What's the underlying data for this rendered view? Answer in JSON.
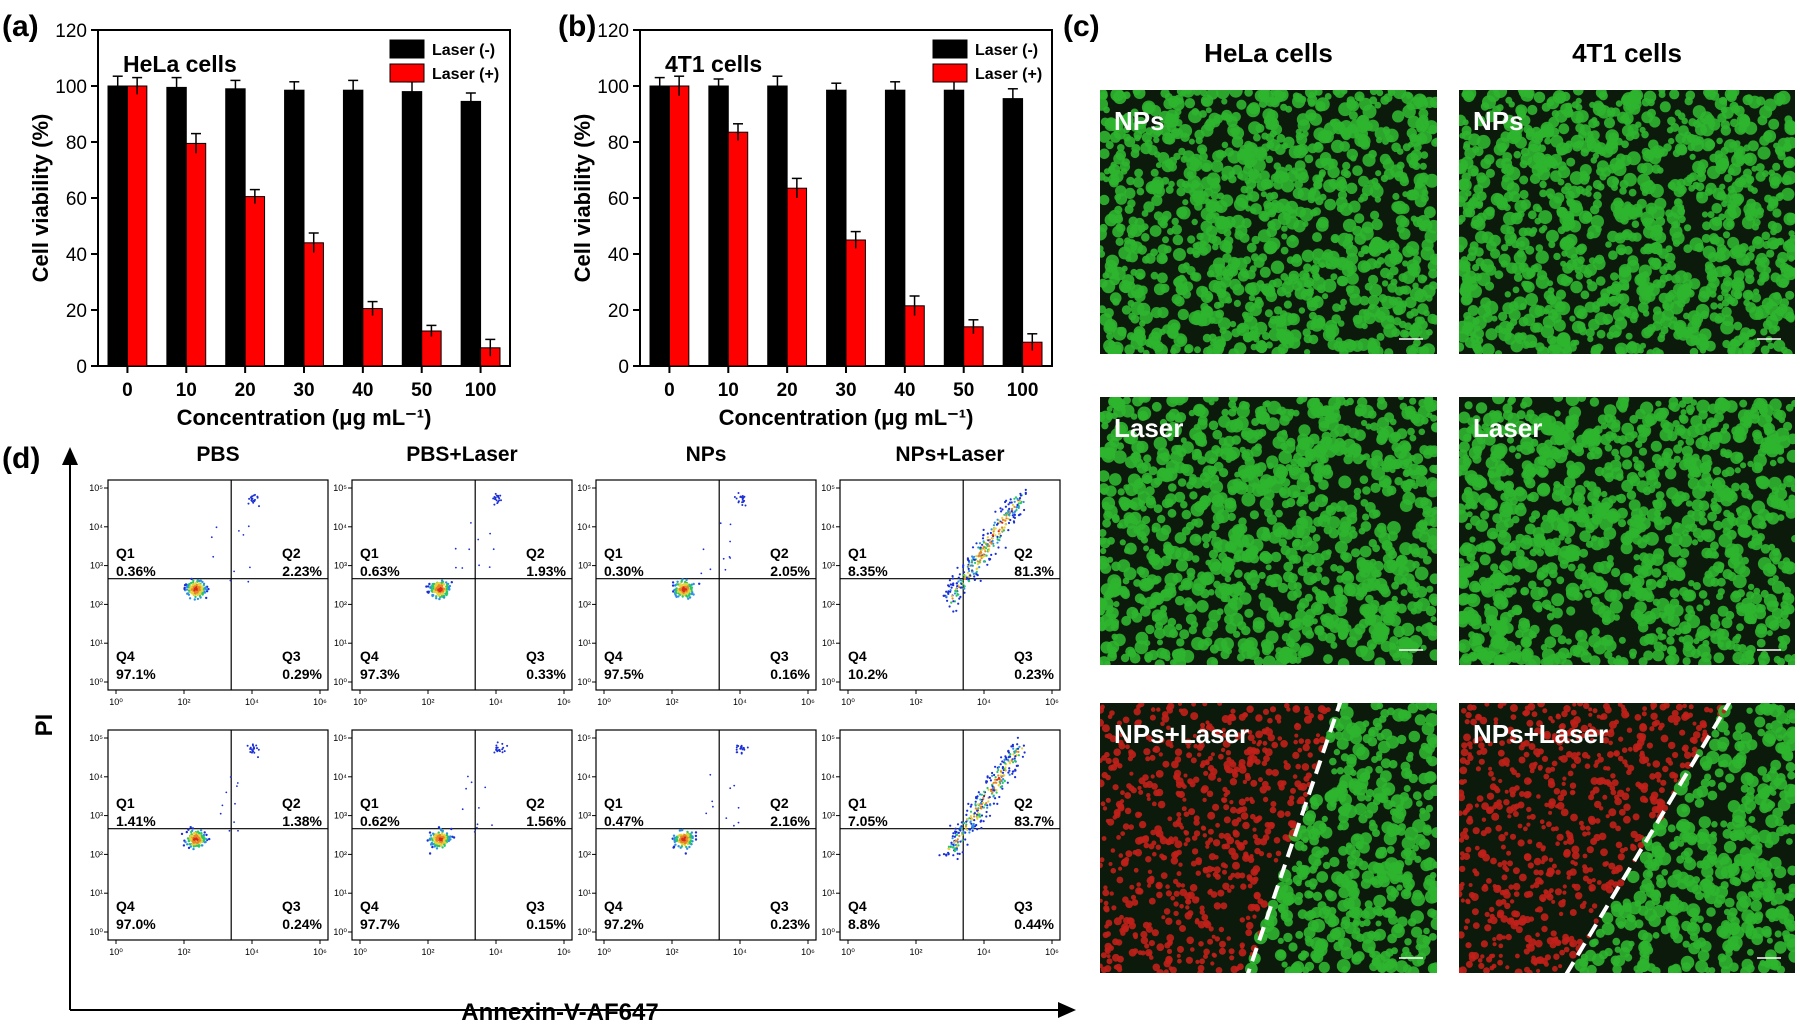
{
  "panel_labels": [
    "(a)",
    "(b)",
    "(c)",
    "(d)"
  ],
  "chart_data": [
    {
      "type": "bar",
      "panel": "(a)",
      "title": "HeLa cells",
      "xlabel": "Concentration (μg mL⁻¹)",
      "ylabel": "Cell viability (%)",
      "ylim": [
        0,
        120
      ],
      "yticks": [
        "0",
        "20",
        "40",
        "60",
        "80",
        "100",
        "120"
      ],
      "categories": [
        "0",
        "10",
        "20",
        "30",
        "40",
        "50",
        "100"
      ],
      "legend_position": "top-right",
      "series": [
        {
          "name": "Laser (-)",
          "color": "#000000",
          "values": [
            100,
            99.5,
            99,
            98.5,
            98.5,
            98,
            94.5
          ],
          "errors": [
            3.5,
            3.5,
            3,
            3,
            3.5,
            3.5,
            3
          ]
        },
        {
          "name": "Laser (+)",
          "color": "#ff0000",
          "values": [
            100,
            79.5,
            60.5,
            44,
            20.5,
            12.5,
            6.5
          ],
          "errors": [
            3,
            3.5,
            2.5,
            3.5,
            2.5,
            2,
            3
          ]
        }
      ]
    },
    {
      "type": "bar",
      "panel": "(b)",
      "title": "4T1 cells",
      "xlabel": "Concentration (μg mL⁻¹)",
      "ylabel": "Cell viability (%)",
      "ylim": [
        0,
        120
      ],
      "yticks": [
        "0",
        "20",
        "40",
        "60",
        "80",
        "100",
        "120"
      ],
      "categories": [
        "0",
        "10",
        "20",
        "30",
        "40",
        "50",
        "100"
      ],
      "legend_position": "top-right",
      "series": [
        {
          "name": "Laser (-)",
          "color": "#000000",
          "values": [
            100,
            100,
            100,
            98.5,
            98.5,
            98.5,
            95.5
          ],
          "errors": [
            3,
            2.5,
            3.5,
            2.5,
            3,
            3.5,
            3.5
          ]
        },
        {
          "name": "Laser (+)",
          "color": "#ff0000",
          "values": [
            100,
            83.5,
            63.5,
            45,
            21.5,
            14,
            8.5
          ],
          "errors": [
            3.5,
            3,
            3.5,
            3,
            3.5,
            2.5,
            3
          ]
        }
      ]
    }
  ],
  "microscopy": {
    "columns": [
      "HeLa cells",
      "4T1 cells"
    ],
    "rows": [
      "NPs",
      "Laser",
      "NPs+Laser"
    ],
    "colors": {
      "live": "#2fb52f",
      "dead": "#c0201a",
      "background": "#0b1a0b"
    }
  },
  "flow": {
    "x_title": "Annexin-V-AF647",
    "y_title": "PI",
    "column_titles": [
      "PBS",
      "PBS+Laser",
      "NPs",
      "NPs+Laser"
    ],
    "x_ticks": [
      "10⁰",
      "10²",
      "10⁴",
      "10⁶"
    ],
    "y_ticks": [
      "10⁰",
      "10¹",
      "10²",
      "10³",
      "10⁴",
      "10⁵"
    ],
    "quadrant_names": [
      "Q1",
      "Q2",
      "Q3",
      "Q4"
    ],
    "rows": [
      [
        {
          "q1": "0.36%",
          "q2": "2.23%",
          "q3": "0.29%",
          "q4": "97.1%"
        },
        {
          "q1": "0.63%",
          "q2": "1.93%",
          "q3": "0.33%",
          "q4": "97.3%"
        },
        {
          "q1": "0.30%",
          "q2": "2.05%",
          "q3": "0.16%",
          "q4": "97.5%"
        },
        {
          "q1": "8.35%",
          "q2": "81.3%",
          "q3": "0.23%",
          "q4": "10.2%"
        }
      ],
      [
        {
          "q1": "1.41%",
          "q2": "1.38%",
          "q3": "0.24%",
          "q4": "97.0%"
        },
        {
          "q1": "0.62%",
          "q2": "1.56%",
          "q3": "0.15%",
          "q4": "97.7%"
        },
        {
          "q1": "0.47%",
          "q2": "2.16%",
          "q3": "0.23%",
          "q4": "97.2%"
        },
        {
          "q1": "7.05%",
          "q2": "83.7%",
          "q3": "0.44%",
          "q4": "8.8%"
        }
      ]
    ]
  }
}
